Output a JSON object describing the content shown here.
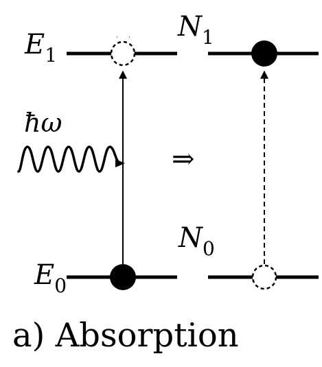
{
  "labels": {
    "E1": {
      "base": "E",
      "sub": "1"
    },
    "E0": {
      "base": "E",
      "sub": "0"
    },
    "N1": {
      "base": "N",
      "sub": "1"
    },
    "N0": {
      "base": "N",
      "sub": "0"
    },
    "photon": "ħω",
    "arrow": "⇒",
    "caption": "a) Absorption"
  },
  "colors": {
    "ink": "#000000",
    "background": "#ffffff"
  }
}
